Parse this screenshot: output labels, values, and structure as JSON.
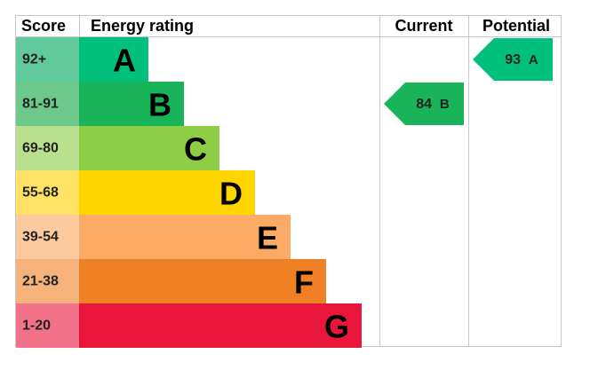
{
  "header": {
    "score": "Score",
    "rating": "Energy rating",
    "current": "Current",
    "potential": "Potential"
  },
  "rows": [
    {
      "score": "92+",
      "letter": "A",
      "color": "#00c07b",
      "score_color": "#62c99c"
    },
    {
      "score": "81-91",
      "letter": "B",
      "color": "#19b459",
      "score_color": "#6cc98a"
    },
    {
      "score": "69-80",
      "letter": "C",
      "color": "#8dce46",
      "score_color": "#b9e08e"
    },
    {
      "score": "55-68",
      "letter": "D",
      "color": "#ffd500",
      "score_color": "#ffe266"
    },
    {
      "score": "39-54",
      "letter": "E",
      "color": "#fcaa65",
      "score_color": "#fdcaa0"
    },
    {
      "score": "21-38",
      "letter": "F",
      "color": "#ef8023",
      "score_color": "#f5b27b"
    },
    {
      "score": "1-20",
      "letter": "G",
      "color": "#e9153b",
      "score_color": "#f27389"
    }
  ],
  "current": {
    "value": 84,
    "letter": "B"
  },
  "potential": {
    "value": 93,
    "letter": "A"
  }
}
